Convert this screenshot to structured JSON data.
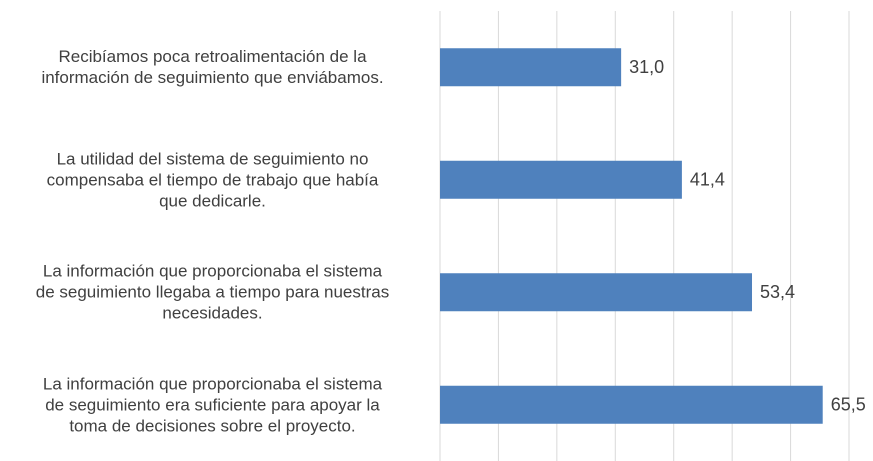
{
  "chart_data": {
    "type": "barh",
    "categories": [
      "Recibíamos poca retroalimentación de la\ninformación de seguimiento que enviábamos.",
      "La utilidad del sistema de seguimiento no\ncompensaba el tiempo de trabajo que había\nque dedicarle.",
      "La información que proporcionaba el sistema\nde seguimiento llegaba a tiempo para nuestras\nnecesidades.",
      "La información que proporcionaba el sistema\nde seguimiento era suficiente para apoyar la\ntoma de decisiones sobre el proyecto."
    ],
    "values": [
      31.0,
      41.4,
      53.4,
      65.5
    ],
    "value_labels": [
      "31,0",
      "41,4",
      "53,4",
      "65,5"
    ],
    "color": "#4f81bd",
    "xlim": [
      0,
      70
    ],
    "xticks": [
      0,
      10,
      20,
      30,
      40,
      50,
      60,
      70
    ],
    "grid": true
  }
}
